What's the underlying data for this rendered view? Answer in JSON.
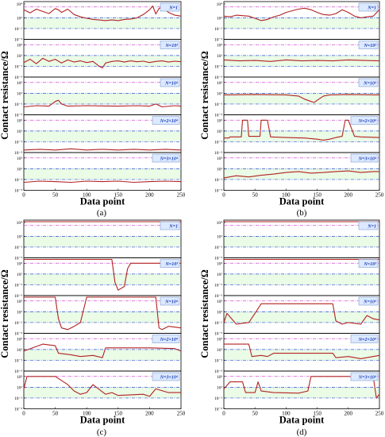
{
  "chart_data": [
    {
      "type": "line",
      "caption": "(a)",
      "xlabel": "Data point",
      "ylabel": "Contact resistance/Ω",
      "xlim": [
        0,
        250
      ],
      "xticks": [
        "0",
        "50",
        "100",
        "150",
        "200",
        "250"
      ],
      "ylim": [
        0.001,
        10000
      ],
      "ytick_labels": [
        "10⁻³",
        "10⁻¹",
        "10¹",
        "10³"
      ],
      "ytick_labels_top": [
        "10⁻³",
        "10⁻¹",
        "10¹",
        "10⁴"
      ],
      "series_color": "#b22222",
      "panels": [
        {
          "label": "N=1",
          "x": [
            0,
            10,
            20,
            30,
            40,
            50,
            55,
            60,
            70,
            80,
            90,
            100,
            110,
            120,
            130,
            140,
            150,
            160,
            170,
            180,
            190,
            200,
            205,
            210,
            215,
            220,
            230,
            240,
            250
          ],
          "y": [
            300,
            80,
            400,
            150,
            60,
            500,
            300,
            100,
            400,
            40,
            15,
            8,
            5,
            4,
            3,
            4,
            3,
            5,
            6,
            10,
            40,
            300,
            1500,
            50,
            500,
            1000,
            100,
            30,
            20
          ]
        },
        {
          "label": "N=10³",
          "x": [
            0,
            10,
            20,
            30,
            40,
            50,
            60,
            70,
            80,
            90,
            100,
            110,
            120,
            125,
            130,
            140,
            150,
            160,
            170,
            180,
            190,
            200,
            210,
            220,
            230,
            240,
            250
          ],
          "y": [
            0.5,
            2,
            0.3,
            3,
            0.8,
            2,
            0.4,
            1.5,
            0.6,
            1,
            0.5,
            0.8,
            0.1,
            0.05,
            0.4,
            0.8,
            1,
            0.6,
            1,
            0.7,
            0.9,
            0.5,
            0.8,
            1,
            0.6,
            0.9,
            0.7
          ]
        },
        {
          "label": "N=10⁴",
          "x": [
            0,
            20,
            40,
            50,
            55,
            60,
            70,
            100,
            150,
            180,
            200,
            210,
            220,
            240,
            250
          ],
          "y": [
            0.03,
            0.05,
            0.04,
            0.3,
            0.5,
            0.1,
            0.04,
            0.05,
            0.04,
            0.05,
            0.04,
            0.1,
            0.03,
            0.05,
            0.04
          ]
        },
        {
          "label": "N=2×10⁴",
          "x": [
            0,
            25,
            50,
            75,
            100,
            125,
            150,
            175,
            200,
            225,
            250
          ],
          "y": [
            0.003,
            0.004,
            0.003,
            0.005,
            0.003,
            0.004,
            0.003,
            0.004,
            0.003,
            0.004,
            0.003
          ]
        },
        {
          "label": "N=3×10⁴",
          "x": [
            0,
            25,
            50,
            75,
            100,
            125,
            150,
            175,
            200,
            225,
            250
          ],
          "y": [
            0.03,
            0.05,
            0.04,
            0.03,
            0.05,
            0.04,
            0.05,
            0.03,
            0.04,
            0.05,
            0.04
          ]
        }
      ]
    },
    {
      "type": "line",
      "caption": "(b)",
      "xlabel": "Data point",
      "ylabel": "Contact resistance/Ω",
      "xlim": [
        0,
        250
      ],
      "xticks": [
        "0",
        "50",
        "100",
        "150",
        "200",
        "250"
      ],
      "ylim": [
        0.001,
        10000
      ],
      "ytick_labels": [
        "10⁻³",
        "10⁻¹",
        "10¹",
        "10³"
      ],
      "ytick_labels_top": [
        "10⁻³",
        "10⁻¹",
        "10¹",
        "10⁴"
      ],
      "series_color": "#b22222",
      "panels": [
        {
          "label": "N=1",
          "x": [
            0,
            10,
            20,
            30,
            40,
            50,
            60,
            70,
            80,
            90,
            100,
            110,
            120,
            130,
            140,
            150,
            160,
            170,
            180,
            190,
            200,
            210,
            220,
            230,
            240,
            250
          ],
          "y": [
            20,
            15,
            30,
            25,
            20,
            8,
            3,
            5,
            15,
            30,
            100,
            200,
            400,
            600,
            300,
            100,
            40,
            30,
            60,
            300,
            100,
            20,
            10,
            15,
            20,
            300
          ]
        },
        {
          "label": "N=10³",
          "x": [
            0,
            25,
            50,
            75,
            100,
            125,
            150,
            175,
            200,
            225,
            250
          ],
          "y": [
            1.5,
            1,
            1.2,
            0.8,
            1.5,
            1,
            1.2,
            1,
            1.5,
            1.2,
            1
          ]
        },
        {
          "label": "N=10⁴",
          "x": [
            0,
            50,
            100,
            120,
            130,
            140,
            145,
            150,
            160,
            170,
            200,
            250
          ],
          "y": [
            5,
            6,
            5,
            3,
            0.8,
            0.3,
            0.2,
            0.5,
            3,
            5,
            6,
            5
          ]
        },
        {
          "label": "N=2×10⁴",
          "x": [
            0,
            8,
            10,
            20,
            28,
            30,
            38,
            40,
            50,
            58,
            60,
            70,
            75,
            100,
            130,
            150,
            160,
            170,
            180,
            190,
            195,
            200,
            210,
            220,
            250
          ],
          "y": [
            0.5,
            0.5,
            0.8,
            0.8,
            0.8,
            1000,
            1000,
            1,
            1,
            1,
            1000,
            1000,
            0.8,
            0.6,
            0.5,
            0.3,
            0.2,
            0.3,
            0.6,
            1,
            1000,
            1000,
            1,
            0.8,
            0.6
          ]
        },
        {
          "label": "N=3×10⁴",
          "x": [
            0,
            20,
            40,
            60,
            80,
            100,
            120,
            140,
            160,
            180,
            200,
            220,
            240,
            250
          ],
          "y": [
            0.2,
            0.5,
            0.3,
            0.6,
            1,
            2,
            3,
            1.5,
            2,
            3,
            4,
            2,
            3,
            3
          ]
        }
      ]
    },
    {
      "type": "line",
      "caption": "(c)",
      "xlabel": "Data point",
      "ylabel": "Contact resistance/Ω",
      "xlim": [
        0,
        250
      ],
      "xticks": [
        "0",
        "50",
        "100",
        "150",
        "200",
        "250"
      ],
      "ylim": [
        0.001,
        10000
      ],
      "ytick_labels": [
        "10⁻³",
        "10⁻¹",
        "10¹",
        "10³"
      ],
      "ytick_labels_top": [
        "10⁻³",
        "10⁻¹",
        "10¹",
        "10⁴"
      ],
      "series_color": "#b22222",
      "panels": [
        {
          "label": "N=1",
          "x": [
            0,
            250
          ],
          "y": [
            5000,
            5000
          ]
        },
        {
          "label": "N=10³",
          "x": [
            0,
            140,
            145,
            150,
            160,
            165,
            170,
            250
          ],
          "y": [
            5000,
            5000,
            0.3,
            0.01,
            0.05,
            100,
            1000,
            1000
          ]
        },
        {
          "label": "N=10⁴",
          "x": [
            0,
            50,
            55,
            60,
            70,
            80,
            90,
            100,
            210,
            215,
            220,
            230,
            250
          ],
          "y": [
            5000,
            5000,
            0.5,
            0.01,
            0.005,
            0.02,
            0.1,
            5000,
            5000,
            0.01,
            0.005,
            0.02,
            0.01
          ]
        },
        {
          "label": "N=2×10⁴",
          "x": [
            0,
            30,
            50,
            55,
            75,
            90,
            110,
            125,
            130,
            200,
            240,
            250
          ],
          "y": [
            5,
            100,
            50,
            2,
            1,
            0.5,
            0.8,
            0.3,
            20,
            20,
            15,
            5
          ]
        },
        {
          "label": "N=3×10⁴",
          "x": [
            0,
            5,
            50,
            70,
            80,
            90,
            100,
            110,
            130,
            140,
            150,
            190,
            200,
            210,
            230,
            250
          ],
          "y": [
            5,
            1000,
            1000,
            30,
            2,
            0.5,
            1,
            30,
            0.5,
            1,
            0.3,
            0.5,
            0.2,
            5,
            1,
            1
          ]
        }
      ]
    },
    {
      "type": "line",
      "caption": "(d)",
      "xlabel": "Data point",
      "ylabel": "Contact resistance/Ω",
      "xlim": [
        0,
        250
      ],
      "xticks": [
        "0",
        "50",
        "100",
        "150",
        "200",
        "250"
      ],
      "ylim": [
        0.001,
        10000
      ],
      "ytick_labels": [
        "10⁻³",
        "10⁻¹",
        "10¹",
        "10³"
      ],
      "ytick_labels_top": [
        "10⁻³",
        "10⁻¹",
        "10¹",
        "10⁴"
      ],
      "series_color": "#b22222",
      "panels": [
        {
          "label": "N=1",
          "x": [
            0,
            250
          ],
          "y": [
            5000,
            5000
          ]
        },
        {
          "label": "N=10³",
          "x": [
            0,
            250
          ],
          "y": [
            5000,
            5000
          ]
        },
        {
          "label": "N=10⁴",
          "x": [
            0,
            5,
            20,
            40,
            50,
            60,
            175,
            180,
            190,
            200,
            220,
            230,
            240,
            250
          ],
          "y": [
            0.1,
            5,
            0.05,
            0.1,
            5,
            300,
            300,
            0.2,
            0.05,
            0.1,
            0.05,
            2,
            0.5,
            0.3
          ]
        },
        {
          "label": "N=2×10⁴",
          "x": [
            0,
            40,
            45,
            60,
            70,
            80,
            120,
            175,
            180,
            200,
            220,
            240,
            250
          ],
          "y": [
            100,
            100,
            0.5,
            0.8,
            0.5,
            2,
            2,
            2,
            0.3,
            0.5,
            0.2,
            0.5,
            0.8
          ]
        },
        {
          "label": "N=3×10⁴",
          "x": [
            0,
            10,
            30,
            35,
            50,
            55,
            60,
            80,
            120,
            135,
            140,
            240,
            245,
            250
          ],
          "y": [
            5,
            100,
            100,
            1,
            1,
            100,
            2,
            1,
            0.8,
            2,
            1000,
            1000,
            0.1,
            0.5
          ]
        }
      ]
    }
  ]
}
